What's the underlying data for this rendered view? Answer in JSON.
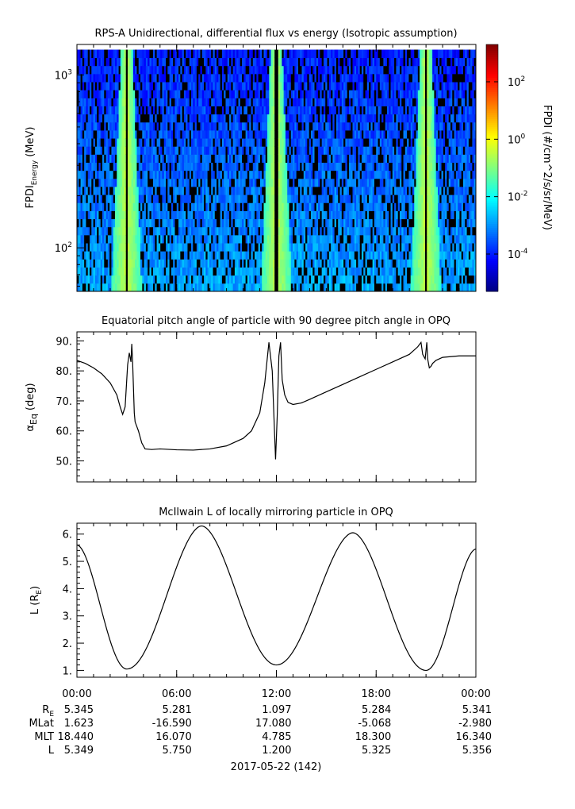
{
  "chart_data": [
    {
      "type": "heatmap",
      "title": "RPS-A Unidirectional, differential flux vs energy (Isotropic assumption)",
      "ylabel": "FPDI",
      "ylabel_sub": "Energy",
      "ylabel_unit": "(MeV)",
      "yscale": "log",
      "ylim": [
        56,
        1500
      ],
      "yticks": [
        {
          "value": 100,
          "base": "10",
          "exp": "2"
        },
        {
          "value": 1000,
          "base": "10",
          "exp": "3"
        }
      ],
      "xlim": [
        0,
        24
      ],
      "energy_range": [
        56,
        1400
      ],
      "energy_channels": 30,
      "time_bins": 220,
      "black_lines_hours": [
        3.0,
        12.0,
        21.0
      ],
      "colorbar": {
        "label": "FPDI (#/cm^2/s/sr/MeV)",
        "scale": "log",
        "range_exp": [
          -5.3,
          3.3
        ],
        "ticks": [
          {
            "exp": 2,
            "label_base": "10",
            "label_exp": "2"
          },
          {
            "exp": 0,
            "label_base": "10",
            "label_exp": "0"
          },
          {
            "exp": -2,
            "label_base": "10",
            "label_exp": "-2"
          },
          {
            "exp": -4,
            "label_base": "10",
            "label_exp": "-4"
          }
        ],
        "colormap": [
          "#000080",
          "#0000ff",
          "#0080ff",
          "#00ffff",
          "#80ff80",
          "#ffff00",
          "#ff8000",
          "#ff0000",
          "#800000"
        ]
      }
    },
    {
      "type": "line",
      "title": "Equatorial pitch angle of particle with 90 degree pitch angle in OPQ",
      "ylabel": "α",
      "ylabel_sub": "Eq",
      "ylabel_unit": "(deg)",
      "ylim": [
        43,
        93
      ],
      "yticks": [
        50,
        60,
        70,
        80,
        90
      ],
      "yticklabels": [
        "50.",
        "60.",
        "70.",
        "80.",
        "90."
      ],
      "xlim": [
        0,
        24
      ],
      "x": [
        0,
        0.5,
        1.0,
        1.5,
        2.0,
        2.4,
        2.6,
        2.75,
        2.9,
        3.05,
        3.15,
        3.25,
        3.3,
        3.35,
        3.45,
        3.5,
        3.7,
        3.9,
        4.1,
        4.5,
        5.0,
        6.0,
        7.0,
        8.0,
        9.0,
        10.0,
        10.5,
        11.0,
        11.3,
        11.55,
        11.75,
        11.85,
        11.95,
        12.05,
        12.15,
        12.25,
        12.35,
        12.5,
        12.7,
        13.0,
        13.5,
        14.0,
        15.0,
        16.0,
        17.0,
        18.0,
        19.0,
        20.0,
        20.5,
        20.7,
        20.8,
        20.95,
        21.05,
        21.1,
        21.2,
        21.3,
        21.4,
        21.6,
        22.0,
        23.0,
        24.0
      ],
      "y": [
        83.5,
        82.5,
        81.0,
        79.0,
        76.0,
        72.0,
        68.0,
        65.5,
        68.0,
        82.0,
        86.0,
        83.0,
        89.0,
        83.0,
        66.0,
        63.0,
        60.0,
        56.0,
        54.0,
        53.8,
        54.0,
        53.7,
        53.6,
        54.0,
        55.0,
        57.5,
        60.0,
        66.0,
        76.0,
        89.5,
        80.0,
        65.0,
        50.5,
        65.0,
        85.0,
        89.5,
        77.0,
        72.0,
        69.5,
        68.8,
        69.3,
        70.5,
        73.0,
        75.5,
        78.0,
        80.5,
        83.0,
        85.5,
        88.0,
        89.5,
        85.5,
        84.0,
        89.5,
        84.0,
        81.0,
        81.5,
        82.5,
        83.5,
        84.5,
        85.0,
        85.0
      ]
    },
    {
      "type": "line",
      "title": "McIlwain L of locally mirroring particle in OPQ",
      "ylabel": "L (R",
      "ylabel_sub": "E",
      "ylabel_unit": ")",
      "ylim": [
        0.75,
        6.4
      ],
      "yticks": [
        1,
        2,
        3,
        4,
        5,
        6
      ],
      "yticklabels": [
        "1.",
        "2.",
        "3.",
        "4.",
        "5.",
        "6."
      ],
      "xlim": [
        0,
        24
      ],
      "segments": [
        {
          "t_start": 0,
          "t_end": 3.0,
          "L_start": 5.6,
          "L_end": 1.05,
          "shape": "descend"
        },
        {
          "t_start": 3.0,
          "t_end": 7.5,
          "L_start": 1.05,
          "L_end": 6.3,
          "shape": "ascend"
        },
        {
          "t_start": 7.5,
          "t_end": 12.0,
          "L_start": 6.3,
          "L_end": 1.2,
          "shape": "descend"
        },
        {
          "t_start": 12.0,
          "t_end": 16.6,
          "L_start": 1.2,
          "L_end": 6.05,
          "shape": "ascend"
        },
        {
          "t_start": 16.6,
          "t_end": 21.0,
          "L_start": 6.05,
          "L_end": 1.0,
          "shape": "descend"
        },
        {
          "t_start": 21.0,
          "t_end": 24.0,
          "L_start": 1.0,
          "L_end": 5.45,
          "shape": "ascend"
        }
      ]
    }
  ],
  "x_axis": {
    "tick_hours": [
      0,
      6,
      12,
      18,
      24
    ],
    "tick_labels": [
      "00:00",
      "06:00",
      "12:00",
      "18:00",
      "00:00"
    ],
    "minor_step_hours": 1,
    "date_label": "2017-05-22 (142)"
  },
  "ephemeris": {
    "row_labels": [
      {
        "base": "R",
        "sub": "E"
      },
      {
        "base": "MLat",
        "sub": ""
      },
      {
        "base": "MLT",
        "sub": ""
      },
      {
        "base": "L",
        "sub": ""
      }
    ],
    "values": [
      [
        "5.345",
        "5.281",
        "1.097",
        "5.284",
        "5.341"
      ],
      [
        "1.623",
        "-16.590",
        "17.080",
        "-5.068",
        "-2.980"
      ],
      [
        "18.440",
        "16.070",
        "4.785",
        "18.300",
        "16.340"
      ],
      [
        "5.349",
        "5.750",
        "1.200",
        "5.325",
        "5.356"
      ]
    ]
  }
}
